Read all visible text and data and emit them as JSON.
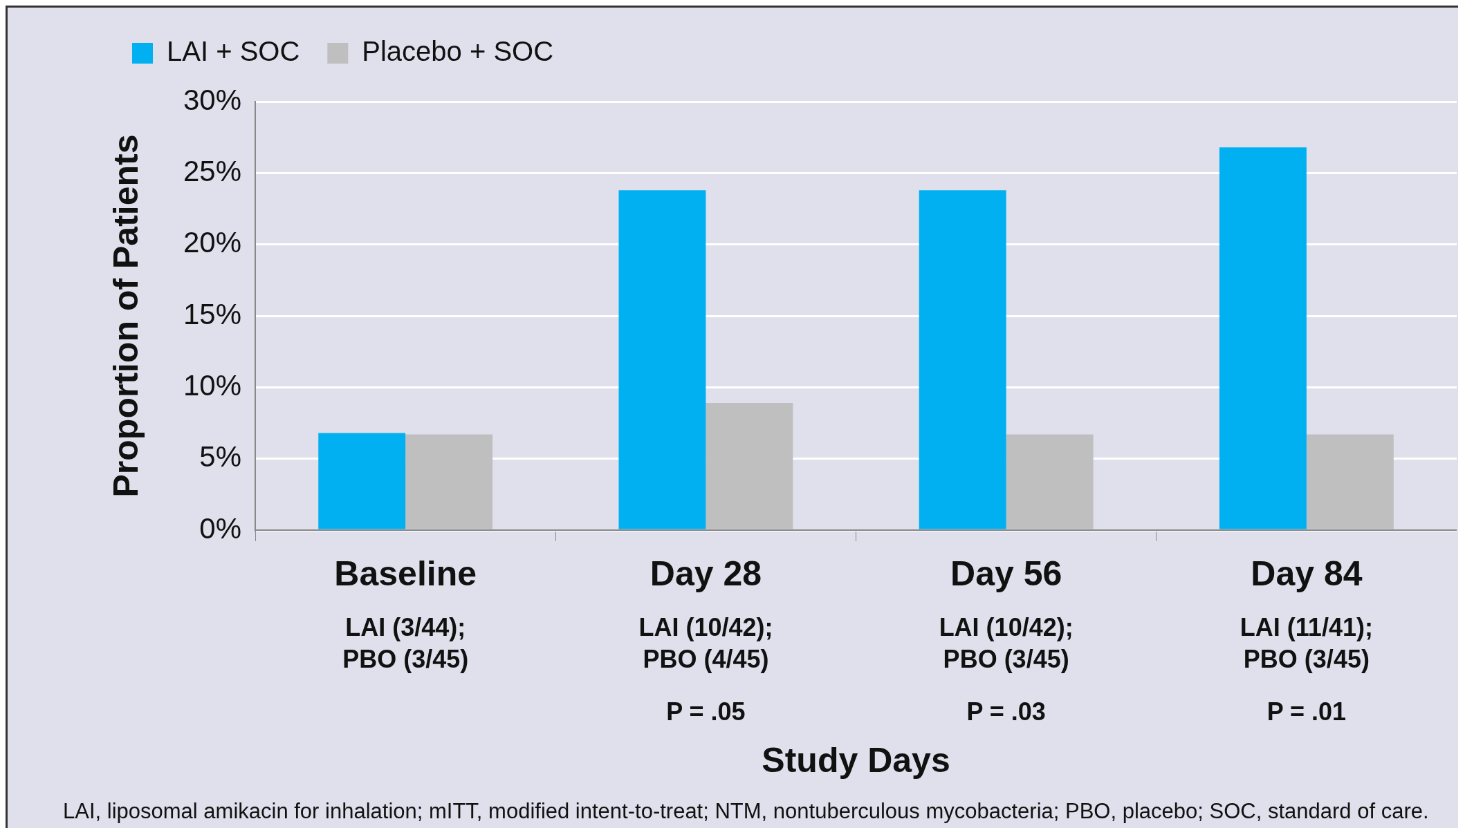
{
  "chart_data": {
    "type": "bar",
    "ylabel": "Proportion of Patients",
    "xlabel": "Study Days",
    "categories": [
      "Baseline",
      "Day 28",
      "Day 56",
      "Day 84"
    ],
    "series": [
      {
        "name": "LAI + SOC",
        "color": "#00b0f0",
        "values": [
          6.8,
          23.8,
          23.8,
          26.8
        ]
      },
      {
        "name": "Placebo + SOC",
        "color": "#bfbfbf",
        "values": [
          6.7,
          8.9,
          6.7,
          6.7
        ]
      }
    ],
    "ylim": [
      0,
      30
    ],
    "yticks": [
      {
        "value": 0,
        "label": "0%"
      },
      {
        "value": 5,
        "label": "5%"
      },
      {
        "value": 10,
        "label": "10%"
      },
      {
        "value": 15,
        "label": "15%"
      },
      {
        "value": 20,
        "label": "20%"
      },
      {
        "value": 25,
        "label": "25%"
      },
      {
        "value": 30,
        "label": "30%"
      }
    ],
    "grid": "y",
    "legend": "top left",
    "annotations": [
      "LAI (3/44);\nPBO (3/45)",
      "LAI (10/42);\nPBO (4/45)",
      "LAI (10/42);\nPBO (3/45)",
      "LAI (11/41);\nPBO (3/45)",
      "P = .05",
      "P = .03",
      "P = .01",
      "LAI, liposomal amikacin for inhalation; mITT, modified intent-to-treat; NTM, nontuberculous mycobacteria; PBO, placebo; SOC, standard of care."
    ]
  }
}
